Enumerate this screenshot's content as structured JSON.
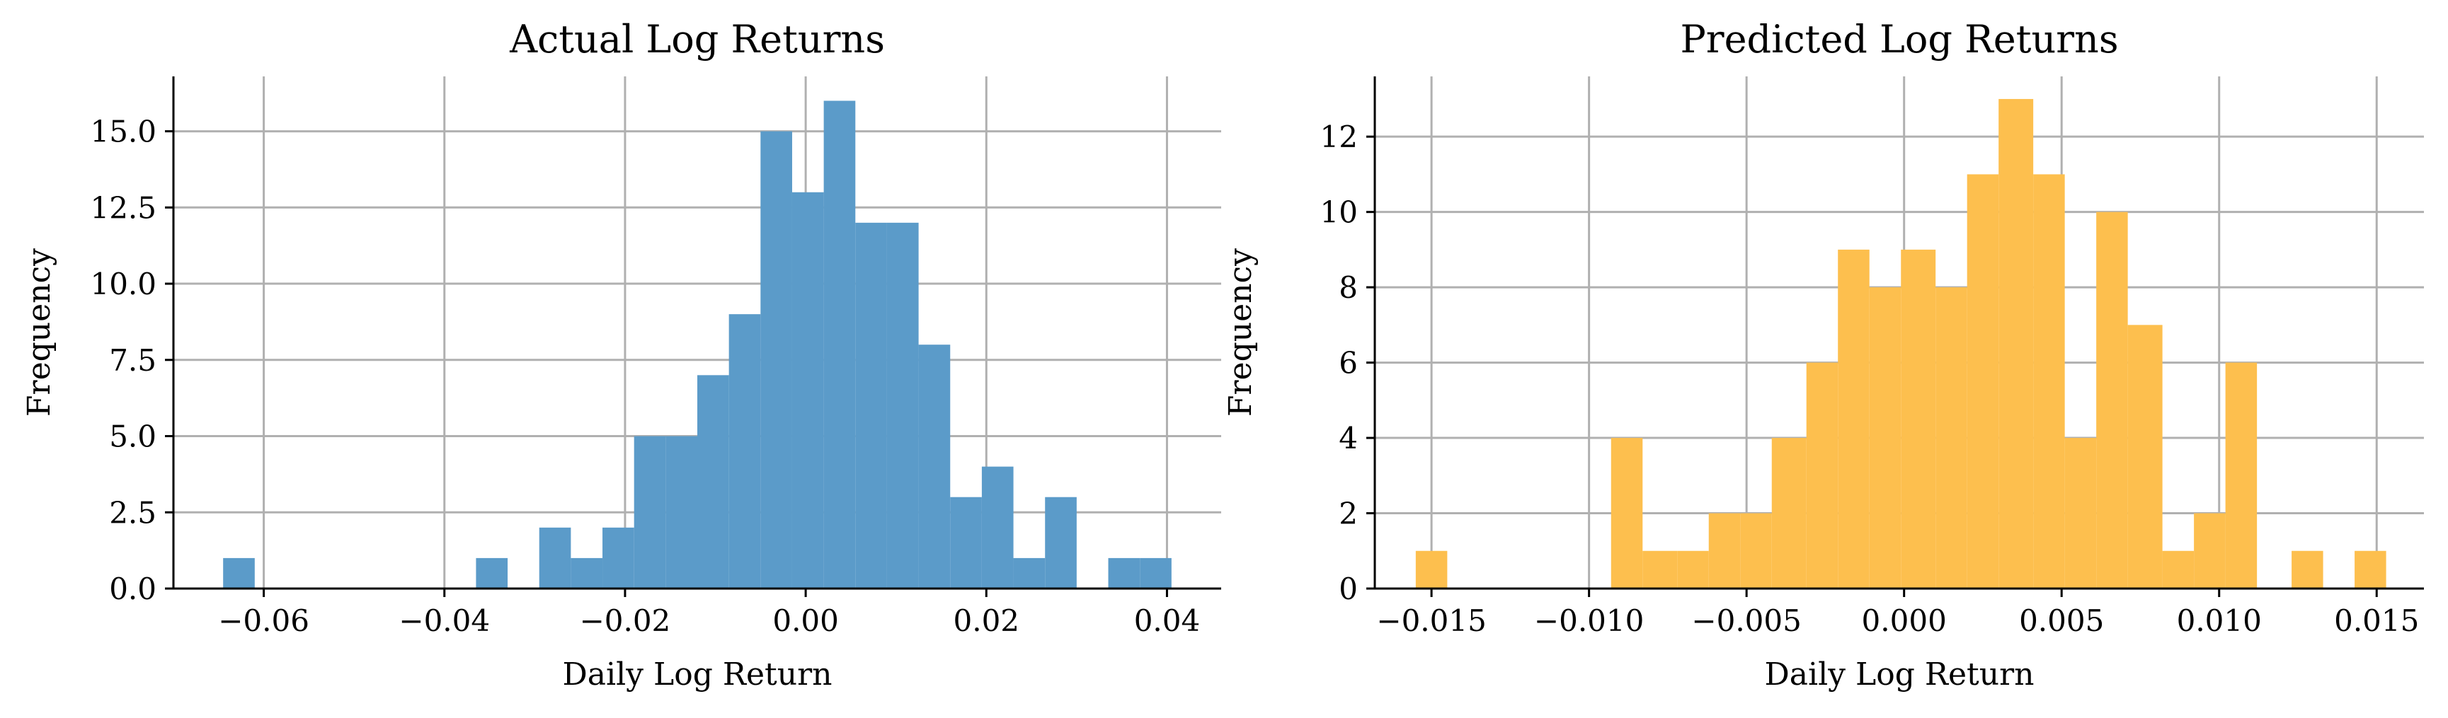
{
  "chart_data": [
    {
      "type": "bar",
      "title": "Actual Log Returns",
      "xlabel": "Daily Log Return",
      "ylabel": "Frequency",
      "color": "#5b9bc9",
      "grid": true,
      "xlim": [
        -0.07,
        0.046
      ],
      "ylim": [
        0,
        16.8
      ],
      "xticks": [
        -0.06,
        -0.04,
        -0.02,
        0.0,
        0.02,
        0.04
      ],
      "xtick_labels": [
        "−0.06",
        "−0.04",
        "−0.02",
        "0.00",
        "0.02",
        "0.04"
      ],
      "yticks": [
        0,
        2.5,
        5,
        7.5,
        10,
        12.5,
        15
      ],
      "ytick_labels": [
        "0.0",
        "2.5",
        "5.0",
        "7.5",
        "10.0",
        "12.5",
        "15.0"
      ],
      "bins": [
        {
          "x0": -0.0645,
          "x1": -0.061,
          "count": 1
        },
        {
          "x0": -0.061,
          "x1": -0.0575,
          "count": 0
        },
        {
          "x0": -0.0575,
          "x1": -0.054,
          "count": 0
        },
        {
          "x0": -0.054,
          "x1": -0.0505,
          "count": 0
        },
        {
          "x0": -0.0505,
          "x1": -0.047,
          "count": 0
        },
        {
          "x0": -0.047,
          "x1": -0.0435,
          "count": 0
        },
        {
          "x0": -0.0435,
          "x1": -0.04,
          "count": 0
        },
        {
          "x0": -0.04,
          "x1": -0.0365,
          "count": 0
        },
        {
          "x0": -0.0365,
          "x1": -0.033,
          "count": 1
        },
        {
          "x0": -0.033,
          "x1": -0.0295,
          "count": 0
        },
        {
          "x0": -0.0295,
          "x1": -0.026,
          "count": 2
        },
        {
          "x0": -0.026,
          "x1": -0.0225,
          "count": 1
        },
        {
          "x0": -0.0225,
          "x1": -0.019,
          "count": 2
        },
        {
          "x0": -0.019,
          "x1": -0.0155,
          "count": 5
        },
        {
          "x0": -0.0155,
          "x1": -0.012,
          "count": 5
        },
        {
          "x0": -0.012,
          "x1": -0.0085,
          "count": 7
        },
        {
          "x0": -0.0085,
          "x1": -0.005,
          "count": 9
        },
        {
          "x0": -0.005,
          "x1": -0.0015,
          "count": 15
        },
        {
          "x0": -0.0015,
          "x1": 0.002,
          "count": 13
        },
        {
          "x0": 0.002,
          "x1": 0.0055,
          "count": 16
        },
        {
          "x0": 0.0055,
          "x1": 0.009,
          "count": 12
        },
        {
          "x0": 0.009,
          "x1": 0.0125,
          "count": 12
        },
        {
          "x0": 0.0125,
          "x1": 0.016,
          "count": 8
        },
        {
          "x0": 0.016,
          "x1": 0.0195,
          "count": 3
        },
        {
          "x0": 0.0195,
          "x1": 0.023,
          "count": 4
        },
        {
          "x0": 0.023,
          "x1": 0.0265,
          "count": 1
        },
        {
          "x0": 0.0265,
          "x1": 0.03,
          "count": 3
        },
        {
          "x0": 0.03,
          "x1": 0.0335,
          "count": 0
        },
        {
          "x0": 0.0335,
          "x1": 0.037,
          "count": 1
        },
        {
          "x0": 0.037,
          "x1": 0.0405,
          "count": 1
        }
      ]
    },
    {
      "type": "bar",
      "title": "Predicted Log Returns",
      "xlabel": "Daily Log Return",
      "ylabel": "Frequency",
      "color": "#fdbf4e",
      "grid": true,
      "xlim": [
        -0.0168,
        0.0165
      ],
      "ylim": [
        0,
        13.6
      ],
      "xticks": [
        -0.015,
        -0.01,
        -0.005,
        0.0,
        0.005,
        0.01,
        0.015
      ],
      "xtick_labels": [
        "−0.015",
        "−0.010",
        "−0.005",
        "0.000",
        "0.005",
        "0.010",
        "0.015"
      ],
      "yticks": [
        0,
        2,
        4,
        6,
        8,
        10,
        12
      ],
      "ytick_labels": [
        "0",
        "2",
        "4",
        "6",
        "8",
        "10",
        "12"
      ],
      "bins": [
        {
          "x0": -0.0155,
          "x1": -0.0145,
          "count": 1
        },
        {
          "x0": -0.0145,
          "x1": -0.0135,
          "count": 0
        },
        {
          "x0": -0.0135,
          "x1": -0.0125,
          "count": 0
        },
        {
          "x0": -0.0125,
          "x1": -0.0115,
          "count": 0
        },
        {
          "x0": -0.0115,
          "x1": -0.0105,
          "count": 0
        },
        {
          "x0": -0.0105,
          "x1": -0.0095,
          "count": 0
        },
        {
          "x0": -0.0093,
          "x1": -0.0083,
          "count": 4
        },
        {
          "x0": -0.0083,
          "x1": -0.0072,
          "count": 1
        },
        {
          "x0": -0.0072,
          "x1": -0.0062,
          "count": 1
        },
        {
          "x0": -0.0062,
          "x1": -0.0052,
          "count": 2
        },
        {
          "x0": -0.0052,
          "x1": -0.0042,
          "count": 2
        },
        {
          "x0": -0.0042,
          "x1": -0.0031,
          "count": 4
        },
        {
          "x0": -0.0031,
          "x1": -0.0021,
          "count": 6
        },
        {
          "x0": -0.0021,
          "x1": -0.0011,
          "count": 9
        },
        {
          "x0": -0.0011,
          "x1": -0.0001,
          "count": 8
        },
        {
          "x0": -0.0001,
          "x1": 0.001,
          "count": 9
        },
        {
          "x0": 0.001,
          "x1": 0.002,
          "count": 8
        },
        {
          "x0": 0.002,
          "x1": 0.003,
          "count": 11
        },
        {
          "x0": 0.003,
          "x1": 0.0041,
          "count": 13
        },
        {
          "x0": 0.0041,
          "x1": 0.0051,
          "count": 11
        },
        {
          "x0": 0.0051,
          "x1": 0.0061,
          "count": 4
        },
        {
          "x0": 0.0061,
          "x1": 0.0071,
          "count": 10
        },
        {
          "x0": 0.0071,
          "x1": 0.0082,
          "count": 7
        },
        {
          "x0": 0.0082,
          "x1": 0.0092,
          "count": 1
        },
        {
          "x0": 0.0092,
          "x1": 0.0102,
          "count": 2
        },
        {
          "x0": 0.0102,
          "x1": 0.0112,
          "count": 6
        },
        {
          "x0": 0.0112,
          "x1": 0.0123,
          "count": 0
        },
        {
          "x0": 0.0123,
          "x1": 0.0133,
          "count": 1
        },
        {
          "x0": 0.0133,
          "x1": 0.0143,
          "count": 0
        },
        {
          "x0": 0.0143,
          "x1": 0.0153,
          "count": 1
        }
      ]
    }
  ]
}
